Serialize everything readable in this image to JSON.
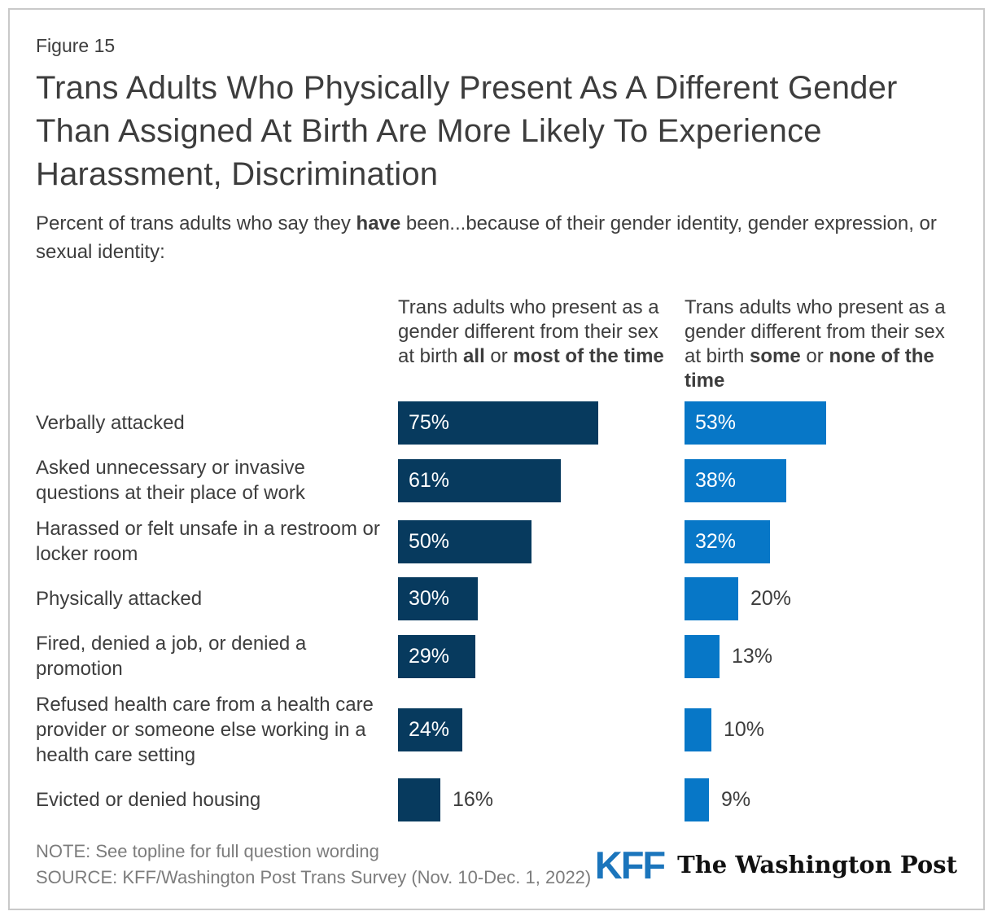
{
  "figure_label": "Figure 15",
  "title": "Trans Adults Who Physically Present As A Different Gender Than Assigned At Birth Are More Likely To Experience Harassment, Discrimination",
  "subtitle": "Percent of trans adults who say they **have** been...because of their gender identity, gender expression, or sexual identity:",
  "colors": {
    "series1": "#073a5e",
    "series2": "#0777c7",
    "text": "#3d3d3d",
    "muted_text": "#7c7c7c",
    "kff_blue": "#1b75bc",
    "frame_border": "#c9c9c9"
  },
  "chart_data": {
    "type": "bar",
    "orientation": "horizontal",
    "unit": "%",
    "xlim": [
      0,
      100
    ],
    "grid": false,
    "legend_position": "column headers above bars",
    "value_labels": "inside bar (white) when bar is long enough, otherwise outside right (dark)",
    "categories": [
      "Verbally attacked",
      "Asked unnecessary or invasive questions at their place of work",
      "Harassed or felt unsafe in a restroom or locker room",
      "Physically attacked",
      "Fired, denied a job, or denied a promotion",
      "Refused health care from a health care provider or someone else working in a health care setting",
      "Evicted or denied housing"
    ],
    "series": [
      {
        "name": "Trans adults who present as a gender different from their sex at birth **all** or **most of the time**",
        "color": "#073a5e",
        "values": [
          75,
          61,
          50,
          30,
          29,
          24,
          16
        ]
      },
      {
        "name": "Trans adults who present as a gender different from their sex at birth **some** or **none of the time**",
        "color": "#0777c7",
        "values": [
          53,
          38,
          32,
          20,
          13,
          10,
          9
        ]
      }
    ]
  },
  "footer": {
    "note": "NOTE: See topline for full question wording",
    "source": "SOURCE: KFF/Washington Post Trans Survey (Nov. 10-Dec. 1, 2022)",
    "logos": {
      "kff": "KFF",
      "washington_post": "The Washington Post"
    }
  }
}
